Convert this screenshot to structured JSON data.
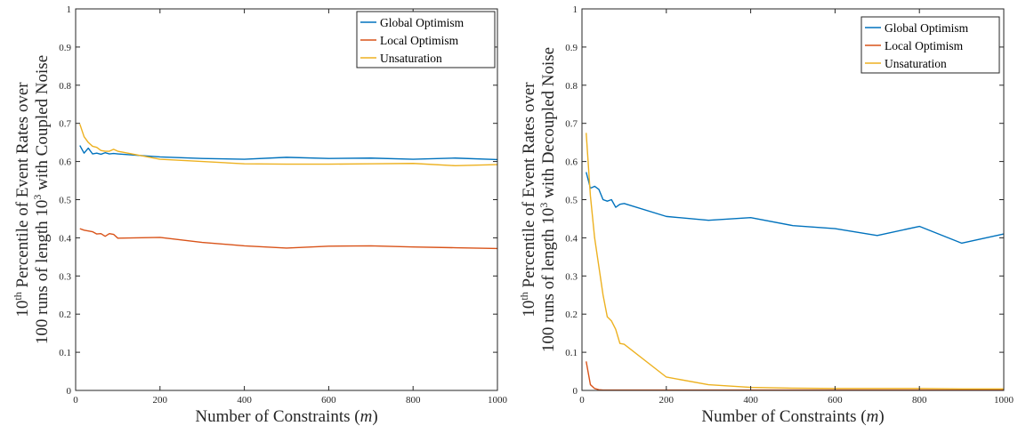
{
  "chart_data": [
    {
      "type": "line",
      "xlabel": "Number of Constraints (m)",
      "xlabel_parts": [
        "Number of Constraints (",
        "m",
        ")"
      ],
      "ylabel_line1": "10th Percentile of Event Rates over",
      "ylabel_line1_parts": [
        "10",
        "th",
        " Percentile of Event Rates over"
      ],
      "ylabel_line2": "100 runs of length 10³ with Coupled Noise",
      "ylabel_line2_parts": [
        "100 runs of length 10",
        "3",
        " with Coupled Noise"
      ],
      "xlim": [
        0,
        1000
      ],
      "ylim": [
        0,
        1
      ],
      "xticks": [
        0,
        200,
        400,
        600,
        800,
        1000
      ],
      "xtick_labels": [
        "0",
        "200",
        "400",
        "600",
        "800",
        "1000"
      ],
      "yticks": [
        0,
        0.1,
        0.2,
        0.3,
        0.4,
        0.5,
        0.6,
        0.7,
        0.8,
        0.9,
        1
      ],
      "ytick_labels": [
        "0",
        "0.1",
        "0.2",
        "0.3",
        "0.4",
        "0.5",
        "0.6",
        "0.7",
        "0.8",
        "0.9",
        "1"
      ],
      "grid": false,
      "legend_position": "top-right",
      "series": [
        {
          "name": "Global Optimism",
          "color": "#0072BD",
          "x": [
            10,
            20,
            30,
            40,
            50,
            60,
            70,
            80,
            90,
            100,
            200,
            300,
            400,
            500,
            600,
            700,
            800,
            900,
            1000
          ],
          "y": [
            0.642,
            0.622,
            0.635,
            0.62,
            0.622,
            0.619,
            0.623,
            0.62,
            0.621,
            0.62,
            0.612,
            0.608,
            0.606,
            0.611,
            0.608,
            0.609,
            0.606,
            0.609,
            0.605
          ]
        },
        {
          "name": "Local Optimism",
          "color": "#D95319",
          "x": [
            10,
            20,
            30,
            40,
            50,
            60,
            70,
            80,
            90,
            100,
            200,
            300,
            400,
            500,
            600,
            700,
            800,
            900,
            1000
          ],
          "y": [
            0.424,
            0.42,
            0.418,
            0.416,
            0.41,
            0.411,
            0.404,
            0.411,
            0.409,
            0.399,
            0.401,
            0.388,
            0.379,
            0.373,
            0.378,
            0.379,
            0.376,
            0.374,
            0.372
          ]
        },
        {
          "name": "Unsaturation",
          "color": "#EDB120",
          "x": [
            10,
            20,
            30,
            40,
            50,
            60,
            70,
            80,
            90,
            100,
            200,
            300,
            400,
            500,
            600,
            700,
            800,
            900,
            1000
          ],
          "y": [
            0.698,
            0.665,
            0.65,
            0.64,
            0.637,
            0.629,
            0.627,
            0.627,
            0.632,
            0.627,
            0.606,
            0.6,
            0.594,
            0.593,
            0.593,
            0.594,
            0.595,
            0.589,
            0.592
          ]
        }
      ]
    },
    {
      "type": "line",
      "xlabel": "Number of Constraints (m)",
      "xlabel_parts": [
        "Number of Constraints (",
        "m",
        ")"
      ],
      "ylabel_line1": "10th Percentile of Event Rates over",
      "ylabel_line1_parts": [
        "10",
        "th",
        " Percentile of Event Rates over"
      ],
      "ylabel_line2": "100 runs of length 10³ with Decoupled Noise",
      "ylabel_line2_parts": [
        "100 runs of length 10",
        "3",
        " with Decoupled Noise"
      ],
      "xlim": [
        0,
        1000
      ],
      "ylim": [
        0,
        1
      ],
      "xticks": [
        0,
        200,
        400,
        600,
        800,
        1000
      ],
      "xtick_labels": [
        "0",
        "200",
        "400",
        "600",
        "800",
        "1000"
      ],
      "yticks": [
        0,
        0.1,
        0.2,
        0.3,
        0.4,
        0.5,
        0.6,
        0.7,
        0.8,
        0.9,
        1
      ],
      "ytick_labels": [
        "0",
        "0.1",
        "0.2",
        "0.3",
        "0.4",
        "0.5",
        "0.6",
        "0.7",
        "0.8",
        "0.9",
        "1"
      ],
      "grid": false,
      "legend_position": "top-right",
      "series": [
        {
          "name": "Global Optimism",
          "color": "#0072BD",
          "x": [
            10,
            20,
            30,
            40,
            50,
            60,
            70,
            80,
            90,
            100,
            200,
            300,
            400,
            500,
            600,
            700,
            800,
            900,
            1000
          ],
          "y": [
            0.572,
            0.53,
            0.535,
            0.527,
            0.5,
            0.496,
            0.5,
            0.48,
            0.488,
            0.49,
            0.456,
            0.446,
            0.453,
            0.432,
            0.424,
            0.406,
            0.43,
            0.386,
            0.41
          ]
        },
        {
          "name": "Local Optimism",
          "color": "#D95319",
          "x": [
            10,
            20,
            30,
            40,
            50,
            60,
            70,
            80,
            90,
            100,
            200,
            300,
            400,
            500,
            600,
            700,
            800,
            900,
            1000
          ],
          "y": [
            0.076,
            0.015,
            0.005,
            0.002,
            0.001,
            0.001,
            0.001,
            0.001,
            0.001,
            0.001,
            0.001,
            0.001,
            0.001,
            0.001,
            0.001,
            0.001,
            0.001,
            0.001,
            0.001
          ]
        },
        {
          "name": "Unsaturation",
          "color": "#EDB120",
          "x": [
            10,
            20,
            30,
            40,
            50,
            60,
            70,
            80,
            90,
            100,
            200,
            300,
            400,
            500,
            600,
            700,
            800,
            900,
            1000
          ],
          "y": [
            0.675,
            0.51,
            0.4,
            0.325,
            0.25,
            0.193,
            0.182,
            0.16,
            0.123,
            0.121,
            0.035,
            0.015,
            0.008,
            0.006,
            0.005,
            0.005,
            0.005,
            0.004,
            0.004
          ]
        }
      ]
    }
  ]
}
